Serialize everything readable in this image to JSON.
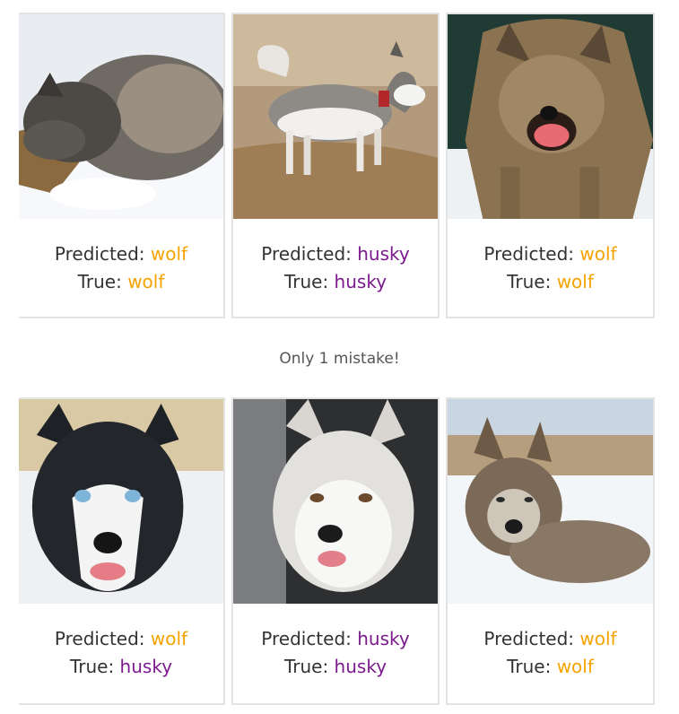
{
  "predicted_label": "Predicted: ",
  "true_label": "True: ",
  "note": "Only 1 mistake!",
  "colors": {
    "wolf": "#f5a300",
    "husky": "#7b1a8c"
  },
  "cards": [
    {
      "predicted": "wolf",
      "true": "wolf",
      "image": "sleeping-wolf-in-snow"
    },
    {
      "predicted": "husky",
      "true": "husky",
      "image": "walking-husky-on-dirt"
    },
    {
      "predicted": "wolf",
      "true": "wolf",
      "image": "snarling-wolf"
    },
    {
      "predicted": "wolf",
      "true": "husky",
      "image": "blue-eyed-husky-face"
    },
    {
      "predicted": "husky",
      "true": "husky",
      "image": "white-husky-face"
    },
    {
      "predicted": "wolf",
      "true": "wolf",
      "image": "wolf-lying-in-snow"
    }
  ]
}
